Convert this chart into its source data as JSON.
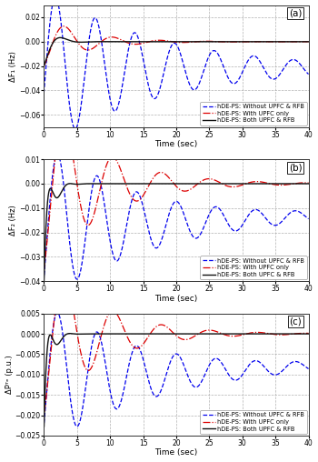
{
  "title_a": "(a)",
  "title_b": "(b)",
  "title_c": "(c)",
  "ylabel_a": "ΔF₁ (Hz)",
  "ylabel_b": "ΔF₂ (Hz)",
  "ylabel_c": "ΔPᵀᵉ (p.u.)",
  "xlabel": "Time (sec)",
  "xlim": [
    0,
    40
  ],
  "ylim_a": [
    -0.07,
    0.03
  ],
  "ylim_b": [
    -0.04,
    0.01
  ],
  "ylim_c": [
    -0.025,
    0.005
  ],
  "yticks_a": [
    -0.06,
    -0.04,
    -0.02,
    0,
    0.02
  ],
  "yticks_b": [
    -0.04,
    -0.03,
    -0.02,
    -0.01,
    0,
    0.01
  ],
  "yticks_c": [
    -0.025,
    -0.02,
    -0.015,
    -0.01,
    -0.005,
    0,
    0.005
  ],
  "xticks": [
    0,
    5,
    10,
    15,
    20,
    25,
    30,
    35,
    40
  ],
  "colors": {
    "blue_dash": "#0000EE",
    "red_dashdot": "#DD0000",
    "black_solid": "#111111"
  },
  "legend": [
    "hDE-PS: Without UPFC & RFB",
    "hDE-PS: With UPFC only",
    "hDE-PS: Both UPFC & RFB"
  ],
  "bg_color": "#ffffff",
  "plot_bg": "#ffffff",
  "grid_color": "#aaaaaa"
}
